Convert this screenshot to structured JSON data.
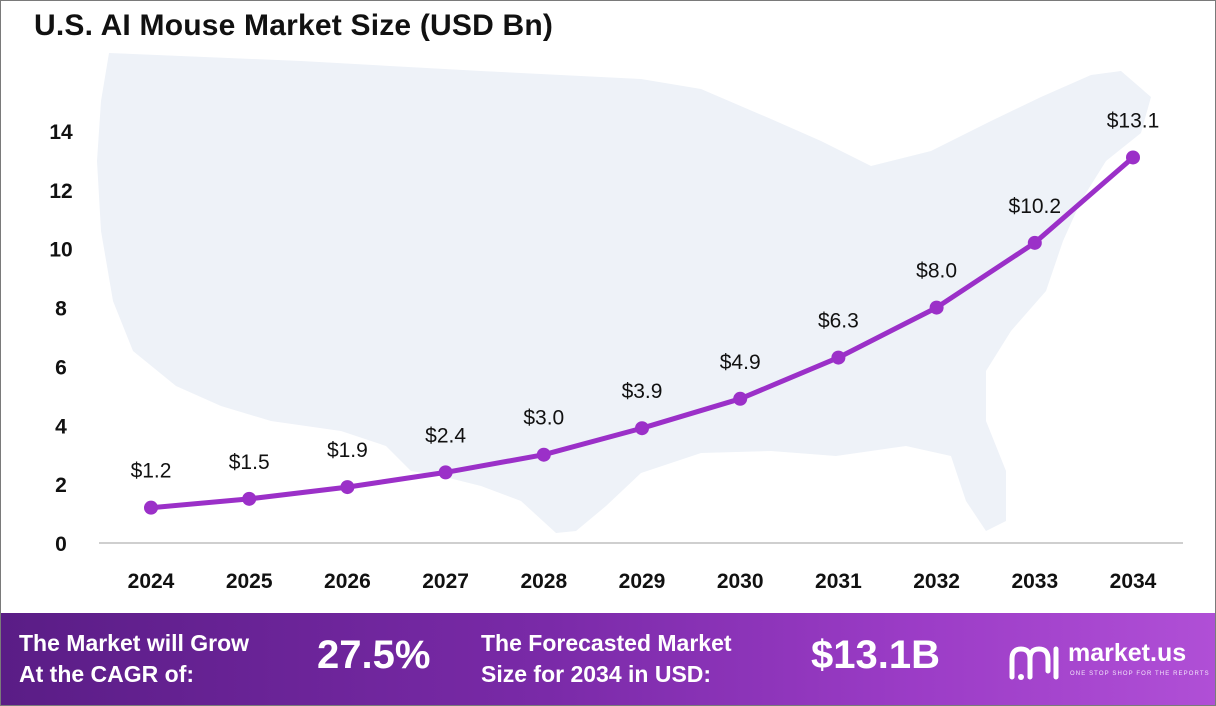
{
  "chart_data": {
    "type": "line",
    "title": "U.S. AI Mouse Market  Size (USD Bn)",
    "x": [
      "2024",
      "2025",
      "2026",
      "2027",
      "2028",
      "2029",
      "2030",
      "2031",
      "2032",
      "2033",
      "2034"
    ],
    "series": [
      {
        "values": [
          1.2,
          1.5,
          1.9,
          2.4,
          3.0,
          3.9,
          4.9,
          6.3,
          8.0,
          10.2,
          13.1
        ],
        "labels": [
          "$1.2",
          "$1.5",
          "$1.9",
          "$2.4",
          "$3.0",
          "$3.9",
          "$4.9",
          "$6.3",
          "$8.0",
          "$10.2",
          "$13.1"
        ]
      }
    ],
    "yticks": [
      "0",
      "2",
      "4",
      "6",
      "8",
      "10",
      "12",
      "14"
    ],
    "ylim": [
      0,
      14
    ],
    "grid": false,
    "legend": "none",
    "line_color": "#9b30c8"
  },
  "footer": {
    "cagr_line1": "The Market will Grow",
    "cagr_line2": "At the CAGR of:",
    "cagr_value": "27.5%",
    "forecast_line1": "The Forecasted Market",
    "forecast_line2": "Size for 2034 in USD:",
    "forecast_value": "$13.1B"
  },
  "logo": {
    "name": "market.us",
    "tagline": "ONE STOP SHOP FOR THE REPORTS"
  }
}
